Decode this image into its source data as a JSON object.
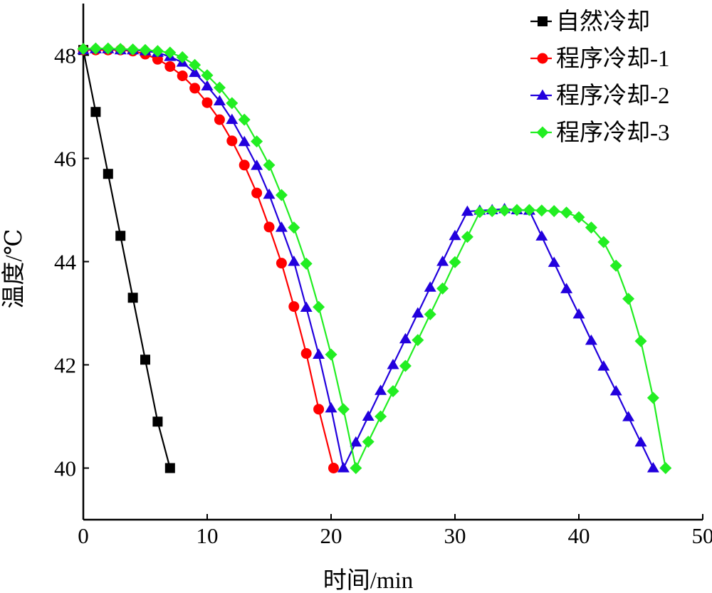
{
  "chart_data": {
    "type": "line",
    "xlabel": "时间/min",
    "ylabel": "温度/℃",
    "xlim": [
      0,
      50
    ],
    "ylim": [
      39,
      49
    ],
    "xticks": [
      0,
      10,
      20,
      30,
      40,
      50
    ],
    "yticks": [
      40,
      42,
      44,
      46,
      48
    ],
    "grid": false,
    "legend_position": "top-right",
    "series": [
      {
        "name": "自然冷却",
        "color": "#000000",
        "marker": "square",
        "points": [
          [
            0,
            48.1
          ],
          [
            1,
            46.9
          ],
          [
            2,
            45.7
          ],
          [
            3,
            44.5
          ],
          [
            4,
            43.3
          ],
          [
            5,
            42.1
          ],
          [
            6,
            40.9
          ],
          [
            7,
            40.0
          ]
        ]
      },
      {
        "name": "程序冷却-1",
        "color": "#ff0000",
        "marker": "circle",
        "points": [
          [
            0,
            48.1
          ],
          [
            1,
            48.1
          ],
          [
            2,
            48.1
          ],
          [
            3,
            48.1
          ],
          [
            4,
            48.08
          ],
          [
            5,
            48.02
          ],
          [
            6,
            47.92
          ],
          [
            7,
            47.78
          ],
          [
            8,
            47.6
          ],
          [
            9,
            47.36
          ],
          [
            10,
            47.08
          ],
          [
            11,
            46.75
          ],
          [
            12,
            46.34
          ],
          [
            13,
            45.87
          ],
          [
            14,
            45.33
          ],
          [
            15,
            44.67
          ],
          [
            16,
            43.97
          ],
          [
            17,
            43.13
          ],
          [
            18,
            42.22
          ],
          [
            19,
            41.14
          ],
          [
            20.2,
            40.0
          ]
        ]
      },
      {
        "name": "程序冷却-2",
        "color": "#2200dd",
        "marker": "triangle",
        "points": [
          [
            0,
            48.1
          ],
          [
            1,
            48.12
          ],
          [
            2,
            48.12
          ],
          [
            3,
            48.1
          ],
          [
            4,
            48.1
          ],
          [
            5,
            48.08
          ],
          [
            6,
            48.05
          ],
          [
            7,
            47.97
          ],
          [
            8,
            47.86
          ],
          [
            9,
            47.66
          ],
          [
            10,
            47.4
          ],
          [
            11,
            47.11
          ],
          [
            12,
            46.75
          ],
          [
            13,
            46.32
          ],
          [
            14,
            45.86
          ],
          [
            15,
            45.3
          ],
          [
            16,
            44.66
          ],
          [
            17,
            44.0
          ],
          [
            18,
            43.11
          ],
          [
            19,
            42.2
          ],
          [
            20,
            41.16
          ],
          [
            21,
            40.0
          ],
          [
            22,
            40.5
          ],
          [
            23,
            41.0
          ],
          [
            24,
            41.5
          ],
          [
            25,
            42.0
          ],
          [
            26,
            42.5
          ],
          [
            27,
            43.0
          ],
          [
            28,
            43.5
          ],
          [
            29,
            44.0
          ],
          [
            30,
            44.5
          ],
          [
            31,
            44.97
          ],
          [
            32,
            44.99
          ],
          [
            33,
            45.0
          ],
          [
            34,
            45.02
          ],
          [
            35,
            45.0
          ],
          [
            36,
            44.99
          ],
          [
            37,
            44.49
          ],
          [
            38,
            43.98
          ],
          [
            39,
            43.47
          ],
          [
            40,
            42.98
          ],
          [
            41,
            42.47
          ],
          [
            42,
            41.97
          ],
          [
            43,
            41.49
          ],
          [
            44,
            40.99
          ],
          [
            45,
            40.5
          ],
          [
            46,
            40.0
          ]
        ]
      },
      {
        "name": "程序冷却-3",
        "color": "#22ee22",
        "marker": "diamond",
        "points": [
          [
            0,
            48.12
          ],
          [
            1,
            48.13
          ],
          [
            2,
            48.13
          ],
          [
            3,
            48.12
          ],
          [
            4,
            48.11
          ],
          [
            5,
            48.1
          ],
          [
            6,
            48.08
          ],
          [
            7,
            48.05
          ],
          [
            8,
            47.96
          ],
          [
            9,
            47.81
          ],
          [
            10,
            47.61
          ],
          [
            11,
            47.37
          ],
          [
            12,
            47.07
          ],
          [
            13,
            46.75
          ],
          [
            14,
            46.33
          ],
          [
            15,
            45.87
          ],
          [
            16,
            45.29
          ],
          [
            17,
            44.66
          ],
          [
            18,
            43.96
          ],
          [
            19,
            43.12
          ],
          [
            20,
            42.2
          ],
          [
            21,
            41.14
          ],
          [
            22,
            40.0
          ],
          [
            23,
            40.51
          ],
          [
            24,
            41.0
          ],
          [
            25,
            41.49
          ],
          [
            26,
            41.98
          ],
          [
            27,
            42.48
          ],
          [
            28,
            42.98
          ],
          [
            29,
            43.48
          ],
          [
            30,
            43.99
          ],
          [
            31,
            44.48
          ],
          [
            32,
            44.96
          ],
          [
            33,
            44.98
          ],
          [
            34,
            44.99
          ],
          [
            35,
            45.0
          ],
          [
            36,
            45.0
          ],
          [
            37,
            44.99
          ],
          [
            38,
            44.98
          ],
          [
            39,
            44.95
          ],
          [
            40,
            44.86
          ],
          [
            41,
            44.66
          ],
          [
            42,
            44.38
          ],
          [
            43,
            43.92
          ],
          [
            44,
            43.28
          ],
          [
            45,
            42.46
          ],
          [
            46,
            41.36
          ],
          [
            47,
            40.0
          ]
        ]
      }
    ]
  }
}
